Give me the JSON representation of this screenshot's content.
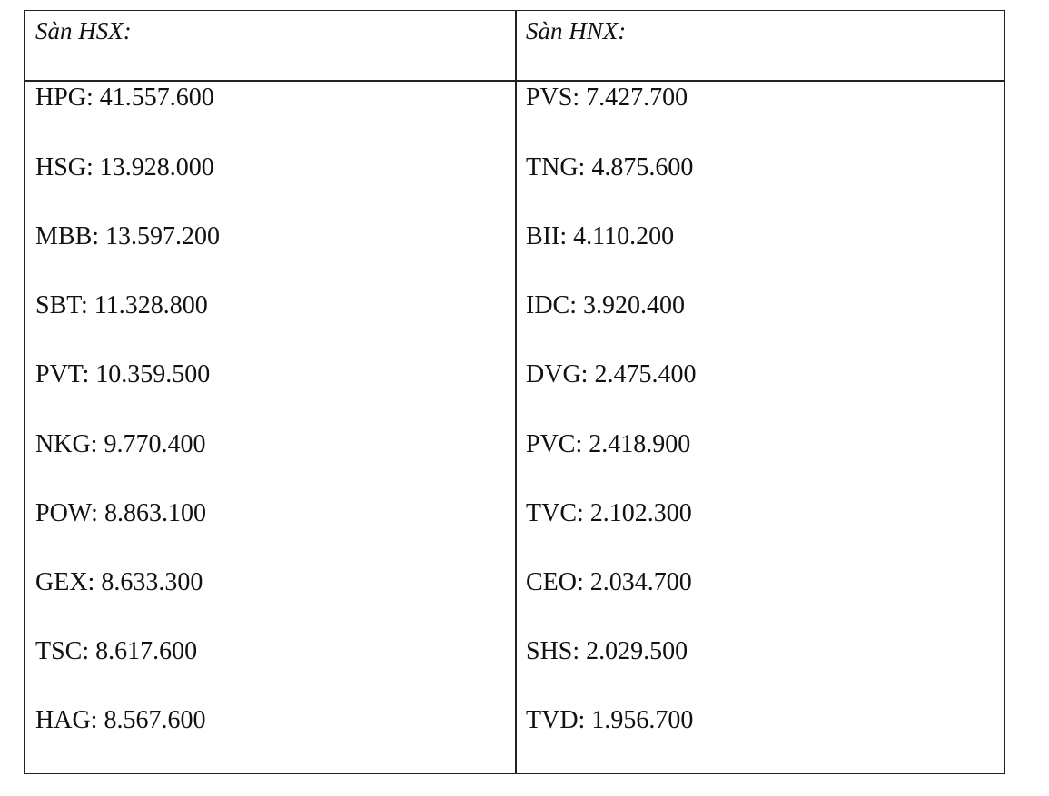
{
  "hsx": {
    "header": "Sàn HSX:",
    "items": [
      "HPG: 41.557.600",
      "HSG: 13.928.000",
      "MBB: 13.597.200",
      "SBT: 11.328.800",
      "PVT: 10.359.500",
      "NKG: 9.770.400",
      "POW: 8.863.100",
      "GEX: 8.633.300",
      "TSC: 8.617.600",
      "HAG: 8.567.600"
    ]
  },
  "hnx": {
    "header": "Sàn HNX:",
    "items": [
      "PVS: 7.427.700",
      "TNG: 4.875.600",
      "BII: 4.110.200",
      "IDC: 3.920.400",
      "DVG: 2.475.400",
      "PVC: 2.418.900",
      "TVC: 2.102.300",
      "CEO: 2.034.700",
      "SHS: 2.029.500",
      "TVD: 1.956.700"
    ]
  }
}
